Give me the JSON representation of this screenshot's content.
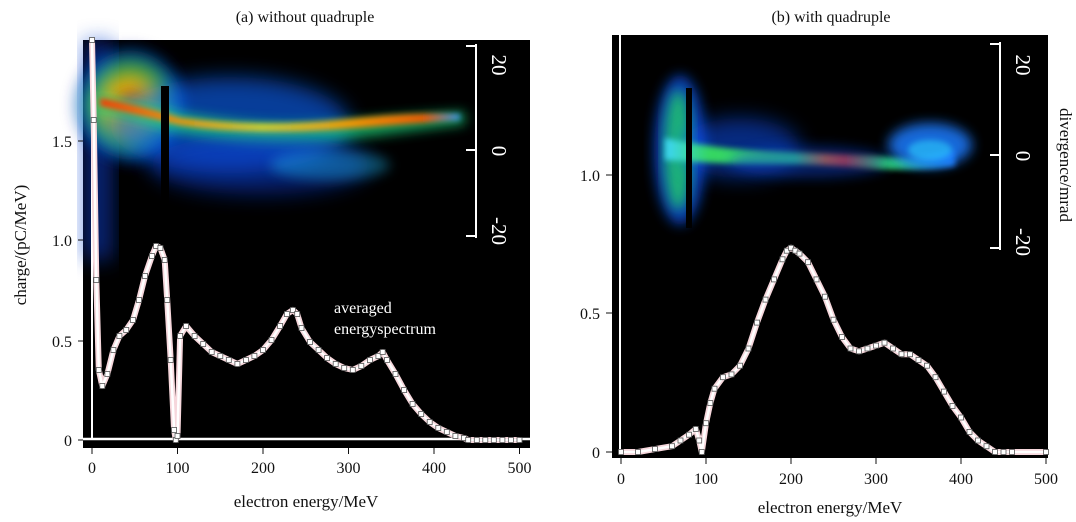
{
  "chart_data": [
    {
      "type": "line",
      "title": "(a) without quadruple",
      "xlabel": "electron energy/MeV",
      "ylabel": "charge/(pC/MeV)",
      "xlim": [
        0,
        500
      ],
      "ylim": [
        0,
        2.0
      ],
      "x_ticks": [
        "0",
        "100",
        "200",
        "300",
        "400",
        "500"
      ],
      "y_ticks": [
        "0",
        "0.5",
        "1.0",
        "1.5"
      ],
      "right_axis_ticks": [
        "20",
        "0",
        "-20"
      ],
      "annotation": [
        "averaged",
        "energyspectrum"
      ],
      "background": "false-color electron beam image (divergence vs energy), jet colormap on black",
      "series": [
        {
          "x": [
            0,
            2,
            5,
            8,
            12,
            18,
            25,
            32,
            40,
            48,
            55,
            62,
            70,
            75,
            80,
            85,
            88,
            92,
            96,
            98,
            100,
            103,
            110,
            120,
            130,
            140,
            150,
            160,
            170,
            180,
            190,
            200,
            210,
            220,
            228,
            235,
            240,
            245,
            255,
            265,
            275,
            285,
            295,
            305,
            315,
            325,
            335,
            340,
            345,
            355,
            365,
            375,
            385,
            395,
            405,
            415,
            425,
            435,
            440,
            450,
            460,
            470,
            480,
            490,
            500
          ],
          "y": [
            2.0,
            1.6,
            0.8,
            0.35,
            0.27,
            0.33,
            0.45,
            0.52,
            0.55,
            0.6,
            0.7,
            0.82,
            0.92,
            0.97,
            0.96,
            0.9,
            0.7,
            0.4,
            0.05,
            0.0,
            0.02,
            0.52,
            0.57,
            0.52,
            0.48,
            0.44,
            0.42,
            0.4,
            0.38,
            0.4,
            0.42,
            0.45,
            0.5,
            0.57,
            0.63,
            0.65,
            0.63,
            0.56,
            0.49,
            0.45,
            0.41,
            0.38,
            0.36,
            0.35,
            0.37,
            0.4,
            0.42,
            0.44,
            0.4,
            0.33,
            0.25,
            0.18,
            0.13,
            0.09,
            0.06,
            0.04,
            0.02,
            0.01,
            0.0,
            0.0,
            0.0,
            0.0,
            0.0,
            0.0,
            0.0
          ]
        }
      ]
    },
    {
      "type": "line",
      "title": "(b) with quadruple",
      "xlabel": "electron energy/MeV",
      "ylabel": "divergence/mrad",
      "xlim": [
        0,
        500
      ],
      "ylim": [
        0,
        1.45
      ],
      "x_ticks": [
        "0",
        "100",
        "200",
        "300",
        "400",
        "500"
      ],
      "y_ticks": [
        "0",
        "0.5",
        "1.0"
      ],
      "right_axis_ticks": [
        "20",
        "0",
        "-20"
      ],
      "background": "false-color electron beam image (divergence vs energy), jet colormap on black",
      "series": [
        {
          "x": [
            0,
            20,
            40,
            60,
            70,
            80,
            88,
            92,
            95,
            100,
            105,
            110,
            120,
            130,
            140,
            150,
            160,
            170,
            180,
            190,
            195,
            200,
            205,
            210,
            220,
            230,
            240,
            250,
            260,
            270,
            280,
            290,
            300,
            310,
            320,
            330,
            340,
            350,
            360,
            370,
            380,
            390,
            400,
            410,
            420,
            430,
            440,
            450,
            460,
            500
          ],
          "y": [
            0.0,
            0.0,
            0.01,
            0.02,
            0.04,
            0.06,
            0.08,
            0.04,
            0.0,
            0.1,
            0.17,
            0.22,
            0.26,
            0.27,
            0.3,
            0.36,
            0.45,
            0.53,
            0.6,
            0.67,
            0.7,
            0.71,
            0.7,
            0.69,
            0.66,
            0.6,
            0.54,
            0.46,
            0.4,
            0.36,
            0.35,
            0.36,
            0.37,
            0.38,
            0.36,
            0.34,
            0.34,
            0.32,
            0.3,
            0.26,
            0.21,
            0.16,
            0.12,
            0.07,
            0.04,
            0.02,
            0.0,
            0.0,
            0.0,
            0.0
          ]
        }
      ]
    }
  ]
}
